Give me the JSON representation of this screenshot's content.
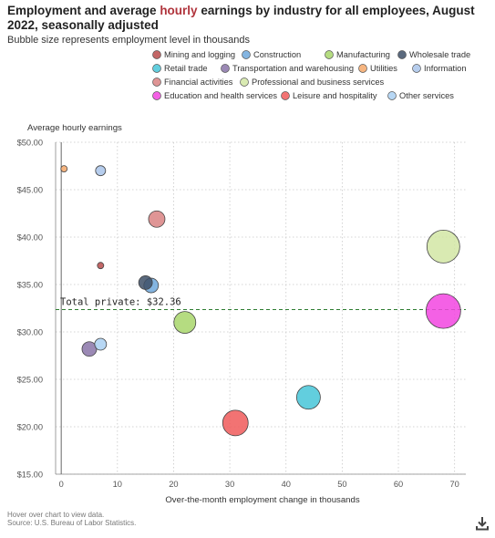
{
  "header": {
    "title_part1": "Employment and average ",
    "title_highlight": "hourly",
    "title_part2": " earnings by industry for all employees, August 2022, seasonally adjusted",
    "subtitle": "Bubble size represents employment level in thousands"
  },
  "footer": {
    "hint": "Hover over chart to view data.",
    "source": "Source: U.S. Bureau of Labor Statistics."
  },
  "download_icon": "download-icon",
  "chart_data": {
    "type": "scatter",
    "subtype": "bubble",
    "ylabel": "Average hourly earnings",
    "xlabel": "Over-the-month employment change in thousands",
    "xlim": [
      -1,
      72
    ],
    "ylim": [
      15,
      50
    ],
    "x_ticks": [
      0,
      10,
      20,
      30,
      40,
      50,
      60,
      70
    ],
    "y_ticks": [
      15,
      20,
      25,
      30,
      35,
      40,
      45,
      50
    ],
    "y_tick_labels": [
      "$15.00",
      "$20.00",
      "$25.00",
      "$30.00",
      "$35.00",
      "$40.00",
      "$45.00",
      "$50.00"
    ],
    "grid": true,
    "legend_position": "top",
    "reference_line": {
      "label": "Total private: $32.36",
      "y": 32.36,
      "color": "#2e7d32"
    },
    "series": [
      {
        "name": "Mining and logging",
        "x": 7,
        "y": 37.0,
        "r": 3.5,
        "color": "#b84c4c"
      },
      {
        "name": "Construction",
        "x": 16,
        "y": 34.9,
        "r": 8,
        "color": "#6fa8dc"
      },
      {
        "name": "Manufacturing",
        "x": 22,
        "y": 31.0,
        "r": 12,
        "color": "#a8d66b"
      },
      {
        "name": "Wholesale trade",
        "x": 15,
        "y": 35.2,
        "r": 7.5,
        "color": "#3d4f66"
      },
      {
        "name": "Retail trade",
        "x": 44,
        "y": 23.1,
        "r": 13,
        "color": "#46c6d8"
      },
      {
        "name": "Transportation and warehousing",
        "x": 5,
        "y": 28.2,
        "r": 8,
        "color": "#8a74a8"
      },
      {
        "name": "Utilities",
        "x": 0.5,
        "y": 47.2,
        "r": 3.5,
        "color": "#f4a86a"
      },
      {
        "name": "Information",
        "x": 7,
        "y": 47.0,
        "r": 5.5,
        "color": "#a9c4ea"
      },
      {
        "name": "Financial activities",
        "x": 17,
        "y": 41.9,
        "r": 9,
        "color": "#d98383"
      },
      {
        "name": "Professional and business services",
        "x": 68,
        "y": 39.0,
        "r": 18,
        "color": "#d2e6a5"
      },
      {
        "name": "Education and health services",
        "x": 68,
        "y": 32.2,
        "r": 19,
        "color": "#f245e0"
      },
      {
        "name": "Leisure and hospitality",
        "x": 31,
        "y": 20.4,
        "r": 14,
        "color": "#f05a5a"
      },
      {
        "name": "Other services",
        "x": 7,
        "y": 28.7,
        "r": 6.5,
        "color": "#aad0f2"
      }
    ]
  }
}
